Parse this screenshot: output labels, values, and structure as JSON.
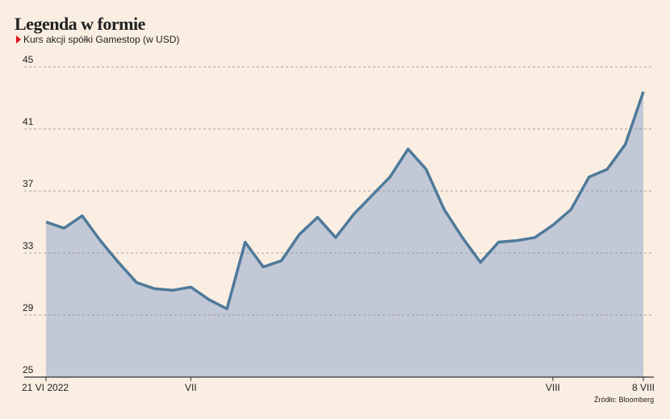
{
  "chart_data": {
    "type": "area",
    "title": "Legenda w formie",
    "subtitle": "Kurs akcji spółki Gamestop (w USD)",
    "source": "Źródło: Bloomberg",
    "categories": [
      "21 VI 2022",
      null,
      null,
      null,
      null,
      null,
      null,
      null,
      "VII",
      null,
      null,
      null,
      null,
      null,
      null,
      null,
      null,
      null,
      null,
      null,
      null,
      null,
      null,
      null,
      null,
      null,
      null,
      null,
      "VIII",
      null,
      null,
      null,
      null,
      "8 VIII"
    ],
    "series": [
      {
        "name": "Gamestop",
        "color": "#4e7a9a",
        "fill": "#c3c8d6",
        "values": [
          35.0,
          34.6,
          35.4,
          33.8,
          32.4,
          31.1,
          30.7,
          30.6,
          30.8,
          30.0,
          29.4,
          33.7,
          32.1,
          32.5,
          34.2,
          35.3,
          34.0,
          35.5,
          36.7,
          37.9,
          39.7,
          38.4,
          35.8,
          34.0,
          32.4,
          33.7,
          33.8,
          34.0,
          34.8,
          35.8,
          37.9,
          38.4,
          40.0,
          43.4
        ]
      }
    ],
    "ylim": [
      25,
      45
    ],
    "yticks": [
      25,
      29,
      33,
      37,
      41,
      45
    ],
    "grid": true
  }
}
